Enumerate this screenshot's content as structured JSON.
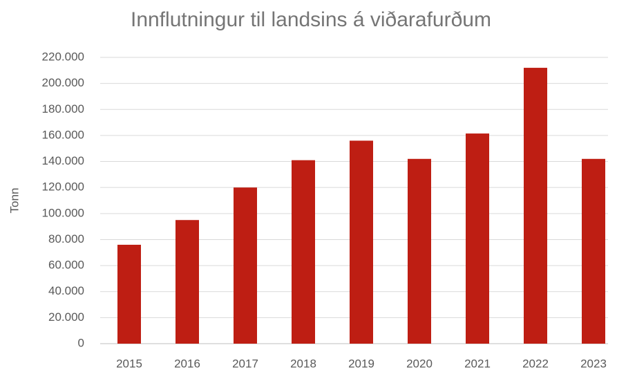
{
  "chart_data": {
    "type": "bar",
    "title": "Innflutningur til landsins á viðarafurðum",
    "ylabel": "Tonn",
    "categories": [
      "2015",
      "2016",
      "2017",
      "2018",
      "2019",
      "2020",
      "2021",
      "2022",
      "2023"
    ],
    "values": [
      76000,
      95000,
      120000,
      141000,
      156000,
      142000,
      161500,
      212000,
      142000
    ],
    "color": "#be1e13",
    "ylim": [
      0,
      220000
    ],
    "yticks": [
      0,
      {
        "value": 20000,
        "label": "20.000"
      },
      {
        "value": 40000,
        "label": "40.000"
      },
      {
        "value": 60000,
        "label": "60.000"
      },
      {
        "value": 80000,
        "label": "80.000"
      },
      {
        "value": 100000,
        "label": "100.000"
      },
      {
        "value": 120000,
        "label": "120.000"
      },
      {
        "value": 140000,
        "label": "140.000"
      },
      {
        "value": 160000,
        "label": "160.000"
      },
      {
        "value": 180000,
        "label": "180.000"
      },
      {
        "value": 200000,
        "label": "200.000"
      },
      {
        "value": 220000,
        "label": "220.000"
      }
    ],
    "grid": true
  }
}
